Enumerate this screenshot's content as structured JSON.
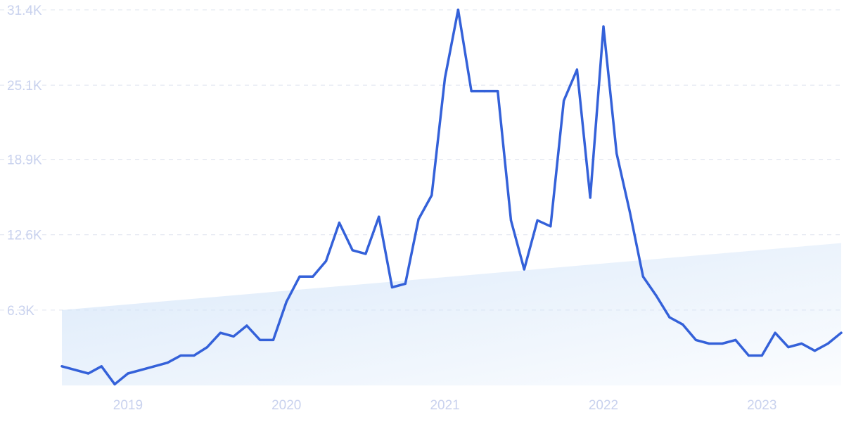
{
  "chart_data": {
    "type": "line",
    "title": "",
    "xlabel": "",
    "ylabel": "",
    "x_start": "2018-08",
    "x_end": "2023-07",
    "ylim": [
      0,
      31400
    ],
    "y_ticks": [
      {
        "value": 6300,
        "label": "6.3K"
      },
      {
        "value": 12600,
        "label": "12.6K"
      },
      {
        "value": 18900,
        "label": "18.9K"
      },
      {
        "value": 25100,
        "label": "25.1K"
      },
      {
        "value": 31400,
        "label": "31.4K"
      }
    ],
    "x_ticks": [
      {
        "value": "2019-01",
        "label": "2019"
      },
      {
        "value": "2020-01",
        "label": "2020"
      },
      {
        "value": "2021-01",
        "label": "2021"
      },
      {
        "value": "2022-01",
        "label": "2022"
      },
      {
        "value": "2023-01",
        "label": "2023"
      }
    ],
    "grid": true,
    "line_color": "#3461d9",
    "trend_fill_color": "#cfe2f8",
    "trend": {
      "start": 6300,
      "end": 11900
    },
    "series": [
      {
        "x": [
          "2018-08",
          "2018-09",
          "2018-10",
          "2018-11",
          "2018-12",
          "2019-01",
          "2019-02",
          "2019-03",
          "2019-04",
          "2019-05",
          "2019-06",
          "2019-07",
          "2019-08",
          "2019-09",
          "2019-10",
          "2019-11",
          "2019-12",
          "2020-01",
          "2020-02",
          "2020-03",
          "2020-04",
          "2020-05",
          "2020-06",
          "2020-07",
          "2020-08",
          "2020-09",
          "2020-10",
          "2020-11",
          "2020-12",
          "2021-01",
          "2021-02",
          "2021-03",
          "2021-04",
          "2021-05",
          "2021-06",
          "2021-07",
          "2021-08",
          "2021-09",
          "2021-10",
          "2021-11",
          "2021-12",
          "2022-01",
          "2022-02",
          "2022-03",
          "2022-04",
          "2022-05",
          "2022-06",
          "2022-07",
          "2022-08",
          "2022-09",
          "2022-10",
          "2022-11",
          "2022-12",
          "2023-01",
          "2023-02",
          "2023-03",
          "2023-04",
          "2023-05",
          "2023-06",
          "2023-07"
        ],
        "values": [
          1600,
          1300,
          1000,
          1600,
          100,
          1000,
          1300,
          1600,
          1900,
          2500,
          2500,
          3200,
          4400,
          4100,
          5000,
          3800,
          3800,
          7000,
          9100,
          9100,
          10400,
          13600,
          11300,
          11000,
          14100,
          8200,
          8500,
          13900,
          15900,
          25700,
          31400,
          24600,
          24600,
          24600,
          13800,
          9700,
          13800,
          13300,
          23800,
          26400,
          15700,
          30000,
          19400,
          14500,
          9100,
          7500,
          5700,
          5100,
          3800,
          3500,
          3500,
          3800,
          2500,
          2500,
          4400,
          3200,
          3500,
          2900,
          3500,
          4400
        ]
      }
    ]
  }
}
